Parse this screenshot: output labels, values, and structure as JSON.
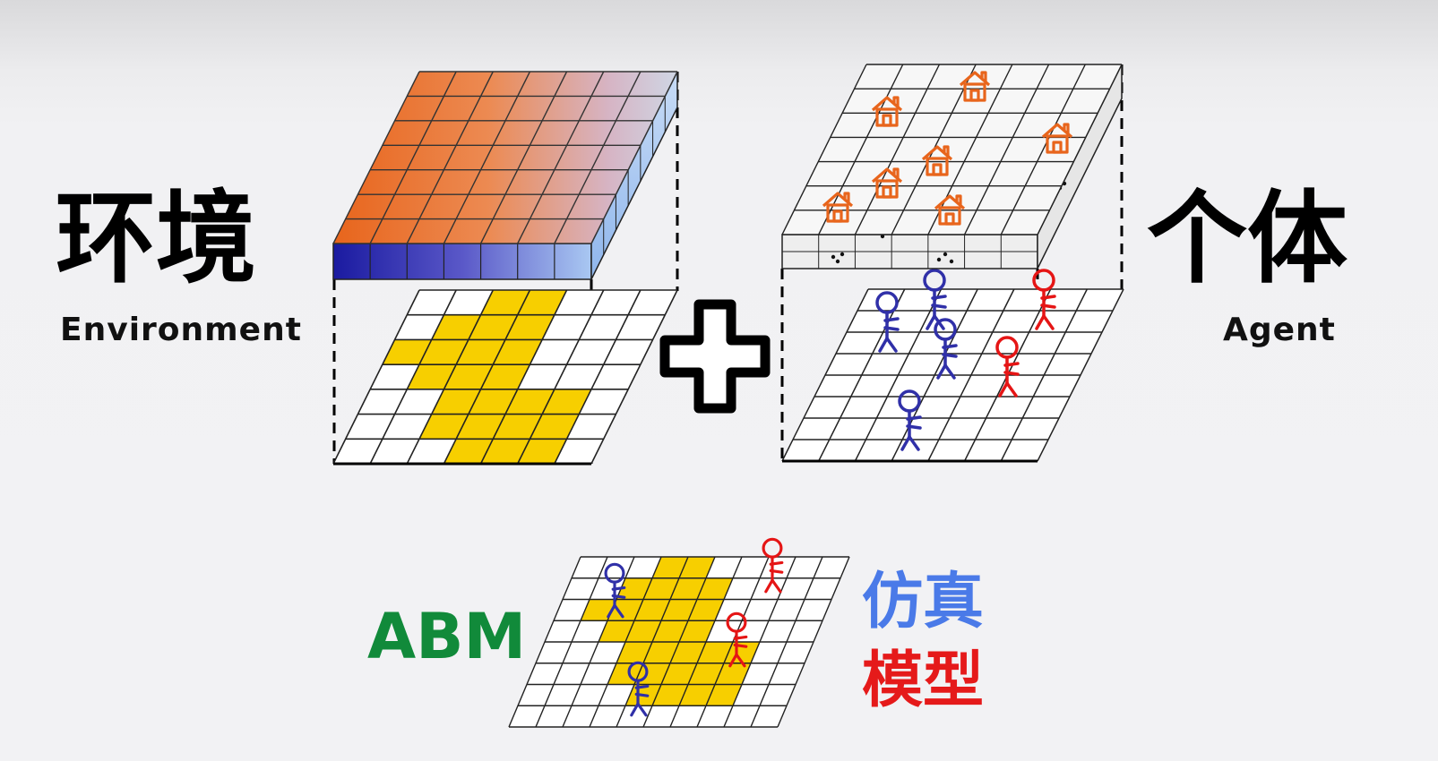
{
  "labels": {
    "environment_cn": "环境",
    "environment_en": "Environment",
    "agent_cn": "个体",
    "agent_en": "Agent",
    "abm": "ABM",
    "sim_line1": "仿真",
    "sim_line2": "模型"
  },
  "colors": {
    "orange": "#e8651c",
    "blue_dark": "#1a1aa0",
    "light_blue": "#a9c8f2",
    "yellow": "#f7cf00",
    "agent_blue": "#3030a8",
    "agent_red": "#e51515",
    "house_orange": "#e8651c",
    "abm_green": "#118a3a",
    "sim_blue": "#4a7ae8",
    "sim_red": "#e51a1a"
  },
  "icons": [
    "plus-icon",
    "house-icon",
    "person-icon"
  ]
}
